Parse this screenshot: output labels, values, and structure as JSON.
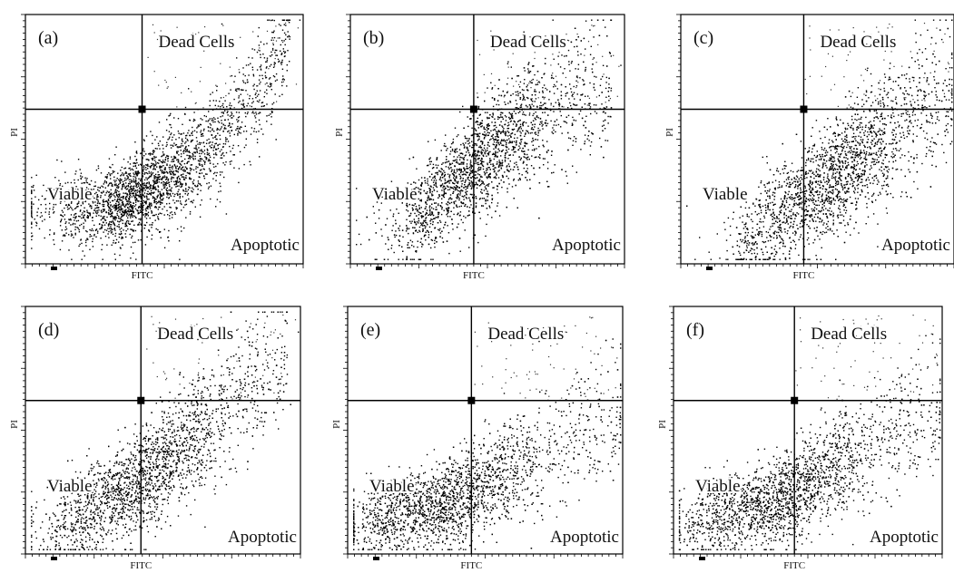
{
  "chart_data": [
    {
      "type": "scatter",
      "panel_label": "(a)",
      "xlabel": "FITC",
      "ylabel": "PI",
      "quadrant_labels": {
        "top_right": "Dead Cells",
        "bottom_left": "Viable",
        "bottom_right": "Apoptotic"
      },
      "gate": {
        "x": 0.42,
        "y": 0.62
      },
      "population": {
        "center": [
          0.38,
          0.28
        ],
        "spread": [
          0.17,
          0.075
        ],
        "trend_x": [
          0.3,
          0.6,
          0.85,
          0.95
        ],
        "trend_y": [
          0.22,
          0.4,
          0.7,
          0.95
        ]
      },
      "grid": false,
      "legend": "none"
    },
    {
      "type": "scatter",
      "panel_label": "(b)",
      "xlabel": "FITC",
      "ylabel": "PI",
      "quadrant_labels": {
        "top_right": "Dead Cells",
        "bottom_left": "Viable",
        "bottom_right": "Apoptotic"
      },
      "gate": {
        "x": 0.45,
        "y": 0.62
      },
      "population": {
        "center": [
          0.45,
          0.32
        ],
        "spread": [
          0.15,
          0.09
        ],
        "trend_x": [
          0.2,
          0.45,
          0.7,
          0.95
        ],
        "trend_y": [
          0.15,
          0.4,
          0.6,
          0.75
        ]
      },
      "grid": false,
      "legend": "none"
    },
    {
      "type": "scatter",
      "panel_label": "(c)",
      "xlabel": "FITC",
      "ylabel": "PI",
      "quadrant_labels": {
        "top_right": "Dead Cells",
        "bottom_left": "Viable",
        "bottom_right": "Apoptotic"
      },
      "gate": {
        "x": 0.45,
        "y": 0.62
      },
      "population": {
        "center": [
          0.55,
          0.32
        ],
        "spread": [
          0.16,
          0.09
        ],
        "trend_x": [
          0.2,
          0.5,
          0.8,
          1.0
        ],
        "trend_y": [
          0.08,
          0.3,
          0.55,
          0.75
        ]
      },
      "grid": false,
      "legend": "none"
    },
    {
      "type": "scatter",
      "panel_label": "(d)",
      "xlabel": "FITC",
      "ylabel": "PI",
      "quadrant_labels": {
        "top_right": "Dead Cells",
        "bottom_left": "Viable",
        "bottom_right": "Apoptotic"
      },
      "gate": {
        "x": 0.42,
        "y": 0.62
      },
      "population": {
        "center": [
          0.42,
          0.3
        ],
        "spread": [
          0.17,
          0.09
        ],
        "trend_x": [
          0.1,
          0.4,
          0.7,
          0.95
        ],
        "trend_y": [
          0.1,
          0.28,
          0.55,
          0.85
        ]
      },
      "grid": false,
      "legend": "none"
    },
    {
      "type": "scatter",
      "panel_label": "(e)",
      "xlabel": "FITC",
      "ylabel": "PI",
      "quadrant_labels": {
        "top_right": "Dead Cells",
        "bottom_left": "Viable",
        "bottom_right": "Apoptotic"
      },
      "gate": {
        "x": 0.45,
        "y": 0.62
      },
      "population": {
        "center": [
          0.35,
          0.22
        ],
        "spread": [
          0.18,
          0.08
        ],
        "trend_x": [
          0.05,
          0.4,
          0.7,
          1.0
        ],
        "trend_y": [
          0.12,
          0.22,
          0.4,
          0.6
        ]
      },
      "grid": false,
      "legend": "none"
    },
    {
      "type": "scatter",
      "panel_label": "(f)",
      "xlabel": "FITC",
      "ylabel": "PI",
      "quadrant_labels": {
        "top_right": "Dead Cells",
        "bottom_left": "Viable",
        "bottom_right": "Apoptotic"
      },
      "gate": {
        "x": 0.45,
        "y": 0.62
      },
      "population": {
        "center": [
          0.4,
          0.22
        ],
        "spread": [
          0.18,
          0.08
        ],
        "trend_x": [
          0.05,
          0.4,
          0.75,
          1.0
        ],
        "trend_y": [
          0.12,
          0.22,
          0.45,
          0.62
        ]
      },
      "grid": false,
      "legend": "none"
    }
  ]
}
